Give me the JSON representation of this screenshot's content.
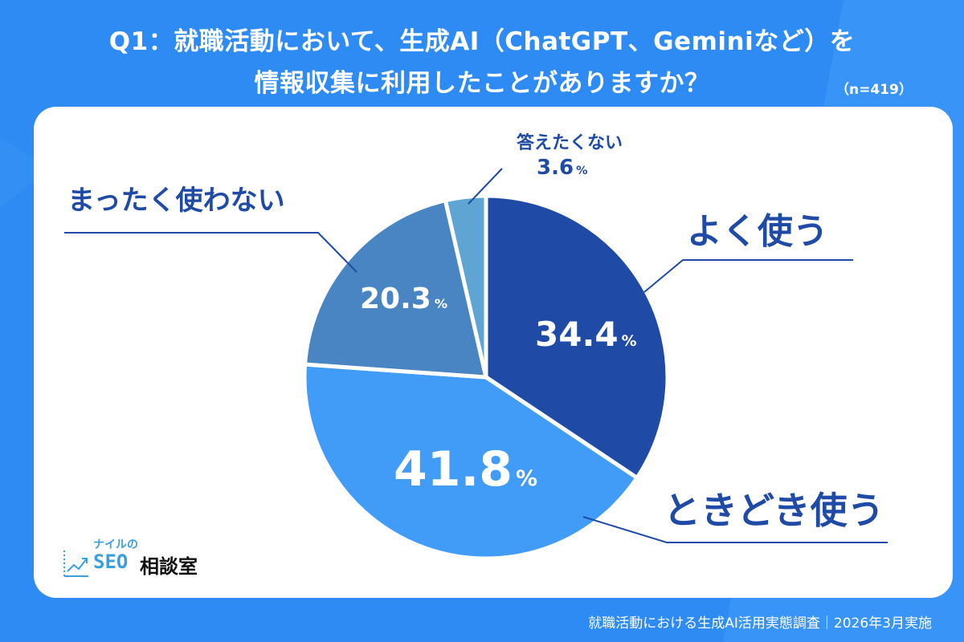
{
  "header": {
    "title_line1": "Q1：就職活動において、生成AI（ChatGPT、Geminiなど）を",
    "title_line2": "情報収集に利用したことがありますか？",
    "sample_size": "（n=419）"
  },
  "logo": {
    "small_text": "ナイルの",
    "seo_text": "SEO",
    "jp_text": "相談室"
  },
  "footer": {
    "text": "就職活動における生成AI活用実態調査｜2026年3月実施"
  },
  "colors": {
    "background": "#2f8bf4",
    "card": "#ffffff",
    "label": "#1f4ba6"
  },
  "chart_data": {
    "type": "pie",
    "title": "Q1：就職活動において、生成AI（ChatGPT、Geminiなど）を情報収集に利用したことがありますか？",
    "n": 419,
    "start_angle_deg": 0,
    "direction": "clockwise",
    "categories": [
      "よく使う",
      "ときどき使う",
      "まったく使わない",
      "答えたくない"
    ],
    "values": [
      34.4,
      41.8,
      20.3,
      3.6
    ],
    "unit": "%",
    "colors": [
      "#1f4ba6",
      "#419cf7",
      "#4885c2",
      "#5ea5d3"
    ],
    "labels": [
      {
        "category": "よく使う",
        "value": "34.4",
        "pct": "%"
      },
      {
        "category": "ときどき使う",
        "value": "41.8",
        "pct": "%"
      },
      {
        "category": "まったく使わない",
        "value": "20.3",
        "pct": "%"
      },
      {
        "category": "答えたくない",
        "value": "3.6",
        "pct": "%"
      }
    ],
    "legend": "none (callout labels)"
  }
}
